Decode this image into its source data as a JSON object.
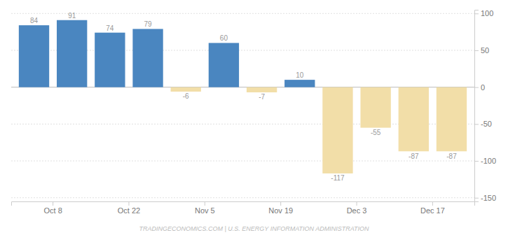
{
  "chart_data": {
    "type": "bar",
    "categories": [
      "Oct 8",
      null,
      "Oct 22",
      null,
      "Nov 5",
      null,
      "Nov 19",
      null,
      "Dec 3",
      null,
      "Dec 17",
      null
    ],
    "values": [
      84,
      91,
      74,
      79,
      -6,
      60,
      -7,
      10,
      -117,
      -55,
      -87,
      -87
    ],
    "colors": [
      "#4a86c0",
      "#4a86c0",
      "#4a86c0",
      "#4a86c0",
      "#f2dea8",
      "#4a86c0",
      "#f2dea8",
      "#4a86c0",
      "#f2dea8",
      "#f2dea8",
      "#f2dea8",
      "#f2dea8"
    ],
    "ylim": [
      -155,
      105
    ],
    "yticks": [
      -150,
      -100,
      -50,
      0,
      50,
      100
    ],
    "grid": true,
    "data_labels": true,
    "annotations": [
      "TRADINGECONOMICS.COM | U.S. ENERGY INFORMATION ADMINISTRATION"
    ]
  }
}
